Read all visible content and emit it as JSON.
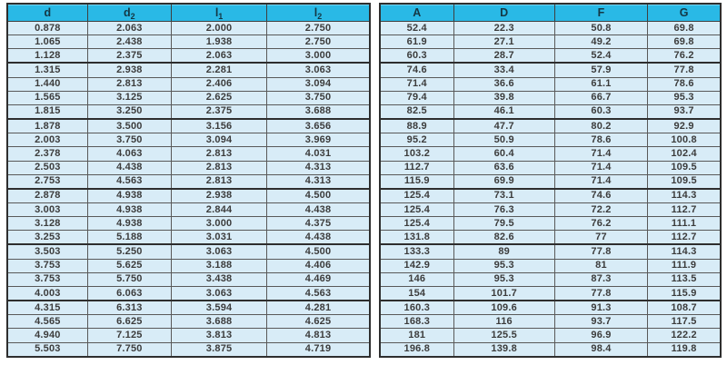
{
  "colors": {
    "header_bg": "#29b9e6",
    "header_text": "#143744",
    "cell_bg": "#d8ecf7",
    "cell_text": "#3c3c3c",
    "grid_line": "#595959",
    "heavy_line": "#2e2e2e"
  },
  "group_start_rows": [
    3,
    7,
    12,
    16,
    20
  ],
  "table_left": {
    "headers": [
      {
        "main": "d",
        "sub": ""
      },
      {
        "main": "d",
        "sub": "2"
      },
      {
        "main": "l",
        "sub": "1"
      },
      {
        "main": "l",
        "sub": "2"
      }
    ],
    "rows": [
      [
        "0.878",
        "2.063",
        "2.000",
        "2.750"
      ],
      [
        "1.065",
        "2.438",
        "1.938",
        "2.750"
      ],
      [
        "1.128",
        "2.375",
        "2.063",
        "3.000"
      ],
      [
        "1.315",
        "2.938",
        "2.281",
        "3.063"
      ],
      [
        "1.440",
        "2.813",
        "2.406",
        "3.094"
      ],
      [
        "1.565",
        "3.125",
        "2.625",
        "3.750"
      ],
      [
        "1.815",
        "3.250",
        "2.375",
        "3.688"
      ],
      [
        "1.878",
        "3.500",
        "3.156",
        "3.656"
      ],
      [
        "2.003",
        "3.750",
        "3.094",
        "3.969"
      ],
      [
        "2.378",
        "4.063",
        "2.813",
        "4.031"
      ],
      [
        "2.503",
        "4.438",
        "2.813",
        "4.313"
      ],
      [
        "2.753",
        "4.563",
        "2.813",
        "4.313"
      ],
      [
        "2.878",
        "4.938",
        "2.938",
        "4.500"
      ],
      [
        "3.003",
        "4.938",
        "2.844",
        "4.438"
      ],
      [
        "3.128",
        "4.938",
        "3.000",
        "4.375"
      ],
      [
        "3.253",
        "5.188",
        "3.031",
        "4.438"
      ],
      [
        "3.503",
        "5.250",
        "3.063",
        "4.500"
      ],
      [
        "3.753",
        "5.625",
        "3.188",
        "4.406"
      ],
      [
        "3.753",
        "5.750",
        "3.438",
        "4.469"
      ],
      [
        "4.003",
        "6.063",
        "3.063",
        "4.563"
      ],
      [
        "4.315",
        "6.313",
        "3.594",
        "4.281"
      ],
      [
        "4.565",
        "6.625",
        "3.688",
        "4.625"
      ],
      [
        "4.940",
        "7.125",
        "3.813",
        "4.813"
      ],
      [
        "5.503",
        "7.750",
        "3.875",
        "4.719"
      ]
    ]
  },
  "table_right": {
    "headers": [
      {
        "main": "A",
        "sub": ""
      },
      {
        "main": "D",
        "sub": ""
      },
      {
        "main": "F",
        "sub": ""
      },
      {
        "main": "G",
        "sub": ""
      }
    ],
    "rows": [
      [
        "52.4",
        "22.3",
        "50.8",
        "69.8"
      ],
      [
        "61.9",
        "27.1",
        "49.2",
        "69.8"
      ],
      [
        "60.3",
        "28.7",
        "52.4",
        "76.2"
      ],
      [
        "74.6",
        "33.4",
        "57.9",
        "77.8"
      ],
      [
        "71.4",
        "36.6",
        "61.1",
        "78.6"
      ],
      [
        "79.4",
        "39.8",
        "66.7",
        "95.3"
      ],
      [
        "82.5",
        "46.1",
        "60.3",
        "93.7"
      ],
      [
        "88.9",
        "47.7",
        "80.2",
        "92.9"
      ],
      [
        "95.2",
        "50.9",
        "78.6",
        "100.8"
      ],
      [
        "103.2",
        "60.4",
        "71.4",
        "102.4"
      ],
      [
        "112.7",
        "63.6",
        "71.4",
        "109.5"
      ],
      [
        "115.9",
        "69.9",
        "71.4",
        "109.5"
      ],
      [
        "125.4",
        "73.1",
        "74.6",
        "114.3"
      ],
      [
        "125.4",
        "76.3",
        "72.2",
        "112.7"
      ],
      [
        "125.4",
        "79.5",
        "76.2",
        "111.1"
      ],
      [
        "131.8",
        "82.6",
        "77",
        "112.7"
      ],
      [
        "133.3",
        "89",
        "77.8",
        "114.3"
      ],
      [
        "142.9",
        "95.3",
        "81",
        "111.9"
      ],
      [
        "146",
        "95.3",
        "87.3",
        "113.5"
      ],
      [
        "154",
        "101.7",
        "77.8",
        "115.9"
      ],
      [
        "160.3",
        "109.6",
        "91.3",
        "108.7"
      ],
      [
        "168.3",
        "116",
        "93.7",
        "117.5"
      ],
      [
        "181",
        "125.5",
        "96.9",
        "122.2"
      ],
      [
        "196.8",
        "139.8",
        "98.4",
        "119.8"
      ]
    ]
  }
}
